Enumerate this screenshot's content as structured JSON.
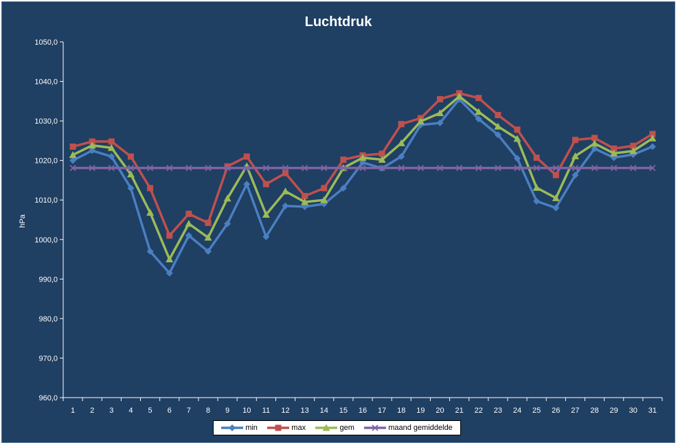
{
  "chart_data": {
    "type": "line",
    "title": "Luchtdruk",
    "ylabel": "hPa",
    "xlabel": "",
    "ylim": [
      960,
      1050
    ],
    "ytick_step": 10,
    "ytick_labels": [
      "960,0",
      "970,0",
      "980,0",
      "990,0",
      "1000,0",
      "1010,0",
      "1020,0",
      "1030,0",
      "1040,0",
      "1050,0"
    ],
    "x": [
      1,
      2,
      3,
      4,
      5,
      6,
      7,
      8,
      9,
      10,
      11,
      12,
      13,
      14,
      15,
      16,
      17,
      18,
      19,
      20,
      21,
      22,
      23,
      24,
      25,
      26,
      27,
      28,
      29,
      30,
      31
    ],
    "grid": false,
    "legend_position": "bottom",
    "series": [
      {
        "name": "min",
        "color": "#4a7fc1",
        "marker": "diamond",
        "values": [
          1020.0,
          1022.5,
          1021.0,
          1013.0,
          997.0,
          991.5,
          1001.0,
          997.0,
          1004.0,
          1014.0,
          1000.7,
          1008.5,
          1008.3,
          1009.0,
          1013.0,
          1019.5,
          1018.0,
          1021.0,
          1029.0,
          1029.5,
          1035.5,
          1030.5,
          1026.5,
          1020.5,
          1009.7,
          1008.0,
          1016.3,
          1023.0,
          1020.7,
          1021.5,
          1023.5
        ]
      },
      {
        "name": "max",
        "color": "#c0504d",
        "marker": "square",
        "values": [
          1023.5,
          1024.8,
          1024.8,
          1021.0,
          1013.0,
          1001.0,
          1006.5,
          1004.2,
          1018.5,
          1021.0,
          1014.0,
          1016.8,
          1011.0,
          1013.0,
          1020.2,
          1021.3,
          1021.7,
          1029.2,
          1030.7,
          1035.5,
          1037.0,
          1035.8,
          1031.5,
          1027.8,
          1020.7,
          1016.3,
          1025.2,
          1025.7,
          1023.0,
          1023.7,
          1026.7
        ]
      },
      {
        "name": "gem",
        "color": "#9bbb59",
        "marker": "triangle",
        "values": [
          1021.4,
          1023.8,
          1023.2,
          1016.5,
          1006.8,
          995.0,
          1004.0,
          1000.5,
          1010.4,
          1018.6,
          1006.3,
          1012.2,
          1009.5,
          1010.0,
          1018.1,
          1020.7,
          1020.2,
          1024.4,
          1029.9,
          1032.0,
          1036.2,
          1032.3,
          1028.6,
          1025.5,
          1013.1,
          1010.5,
          1021.1,
          1024.3,
          1021.8,
          1022.4,
          1025.6
        ]
      },
      {
        "name": "maand gemiddelde",
        "color": "#8064a2",
        "marker": "x",
        "values": [
          1018.1,
          1018.1,
          1018.1,
          1018.1,
          1018.1,
          1018.1,
          1018.1,
          1018.1,
          1018.1,
          1018.1,
          1018.1,
          1018.1,
          1018.1,
          1018.1,
          1018.1,
          1018.1,
          1018.1,
          1018.1,
          1018.1,
          1018.1,
          1018.1,
          1018.1,
          1018.1,
          1018.1,
          1018.1,
          1018.1,
          1018.1,
          1018.1,
          1018.1,
          1018.1,
          1018.1
        ]
      }
    ]
  }
}
